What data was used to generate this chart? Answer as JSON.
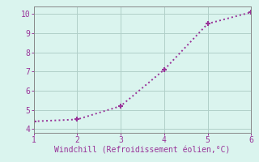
{
  "x": [
    1,
    2,
    3,
    4,
    5,
    6
  ],
  "y": [
    4.4,
    4.5,
    5.2,
    7.1,
    9.5,
    10.1
  ],
  "line_color": "#993399",
  "marker": "+",
  "marker_size": 5,
  "marker_linewidth": 1.5,
  "xlabel": "Windchill (Refroidissement éolien,°C)",
  "xlim": [
    1,
    6
  ],
  "ylim": [
    3.8,
    10.4
  ],
  "yticks": [
    4,
    5,
    6,
    7,
    8,
    9,
    10
  ],
  "xticks": [
    1,
    2,
    3,
    4,
    5,
    6
  ],
  "background_color": "#daf4ee",
  "grid_color": "#b0cfc8",
  "xlabel_color": "#993399",
  "xlabel_fontsize": 7,
  "tick_fontsize": 7,
  "line_style": ":",
  "line_width": 1.4
}
